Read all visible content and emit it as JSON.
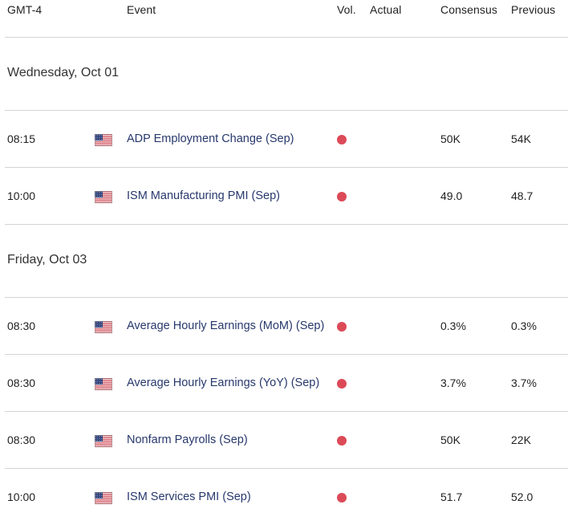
{
  "header": {
    "timezone": "GMT-4",
    "event": "Event",
    "vol": "Vol.",
    "actual": "Actual",
    "consensus": "Consensus",
    "previous": "Previous"
  },
  "colors": {
    "volatility_high": "#dc4a57",
    "event_text": "#27386c",
    "divider": "#d4d4d4"
  },
  "days": [
    {
      "label": "Wednesday, Oct 01",
      "events": [
        {
          "time": "08:15",
          "flag": "us-flag-icon",
          "name": "ADP Employment Change (Sep)",
          "volatility": "high",
          "actual": "",
          "consensus": "50K",
          "previous": "54K"
        },
        {
          "time": "10:00",
          "flag": "us-flag-icon",
          "name": "ISM Manufacturing PMI (Sep)",
          "volatility": "high",
          "actual": "",
          "consensus": "49.0",
          "previous": "48.7"
        }
      ]
    },
    {
      "label": "Friday, Oct 03",
      "events": [
        {
          "time": "08:30",
          "flag": "us-flag-icon",
          "name": "Average Hourly Earnings (MoM) (Sep)",
          "volatility": "high",
          "actual": "",
          "consensus": "0.3%",
          "previous": "0.3%"
        },
        {
          "time": "08:30",
          "flag": "us-flag-icon",
          "name": "Average Hourly Earnings (YoY) (Sep)",
          "volatility": "high",
          "actual": "",
          "consensus": "3.7%",
          "previous": "3.7%"
        },
        {
          "time": "08:30",
          "flag": "us-flag-icon",
          "name": "Nonfarm Payrolls (Sep)",
          "volatility": "high",
          "actual": "",
          "consensus": "50K",
          "previous": "22K"
        },
        {
          "time": "10:00",
          "flag": "us-flag-icon",
          "name": "ISM Services PMI (Sep)",
          "volatility": "high",
          "actual": "",
          "consensus": "51.7",
          "previous": "52.0"
        }
      ]
    }
  ]
}
